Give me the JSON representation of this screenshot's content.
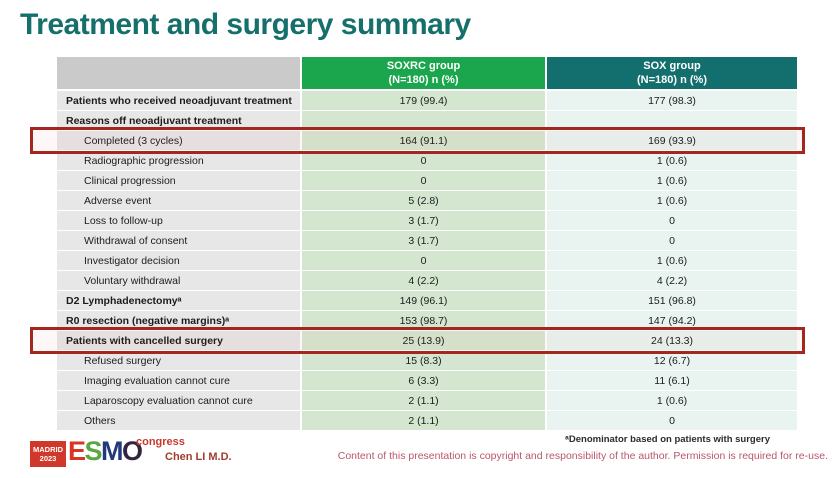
{
  "slide": {
    "title": "Treatment and surgery summary",
    "presenter": "Chen LI M.D.",
    "footnote": "ᵃDenominator based on patients with surgery",
    "copyright": "Content of this presentation is copyright and responsibility of the author.  Permission is required for re-use."
  },
  "logo": {
    "city": "MADRID",
    "year": "2023",
    "letters": [
      "E",
      "S",
      "M",
      "O"
    ],
    "congress": "congress"
  },
  "colors": {
    "title": "#156f6b",
    "label_header": "#cacaca",
    "soxrc_header": "#1ba64d",
    "sox_header": "#136f6e",
    "label_cell": "#e7e7e7",
    "soxrc_cell": "#d5e6d0",
    "sox_cell": "#e9f4f0",
    "highlight_border": "#a3271f",
    "copyright_text": "#b9576d"
  },
  "table": {
    "headers": [
      {
        "line1": "SOXRC group",
        "line2": "(N=180)  n (%)"
      },
      {
        "line1": "SOX group",
        "line2": "(N=180)  n (%)"
      }
    ],
    "rows": [
      {
        "label": "Patients who received neoadjuvant treatment",
        "soxrc": "179 (99.4)",
        "sox": "177 (98.3)",
        "bold": true,
        "indent": false,
        "highlighted": false
      },
      {
        "label": "Reasons off neoadjuvant treatment",
        "soxrc": "",
        "sox": "",
        "bold": true,
        "indent": false,
        "highlighted": false
      },
      {
        "label": "Completed (3 cycles)",
        "soxrc": "164 (91.1)",
        "sox": "169 (93.9)",
        "bold": false,
        "indent": true,
        "highlighted": true
      },
      {
        "label": "Radiographic progression",
        "soxrc": "0",
        "sox": "1 (0.6)",
        "bold": false,
        "indent": true,
        "highlighted": false
      },
      {
        "label": "Clinical progression",
        "soxrc": "0",
        "sox": "1 (0.6)",
        "bold": false,
        "indent": true,
        "highlighted": false
      },
      {
        "label": "Adverse event",
        "soxrc": "5 (2.8)",
        "sox": "1 (0.6)",
        "bold": false,
        "indent": true,
        "highlighted": false
      },
      {
        "label": "Loss to follow-up",
        "soxrc": "3 (1.7)",
        "sox": "0",
        "bold": false,
        "indent": true,
        "highlighted": false
      },
      {
        "label": "Withdrawal of consent",
        "soxrc": "3 (1.7)",
        "sox": "0",
        "bold": false,
        "indent": true,
        "highlighted": false
      },
      {
        "label": "Investigator decision",
        "soxrc": "0",
        "sox": "1 (0.6)",
        "bold": false,
        "indent": true,
        "highlighted": false
      },
      {
        "label": "Voluntary withdrawal",
        "soxrc": "4 (2.2)",
        "sox": "4 (2.2)",
        "bold": false,
        "indent": true,
        "highlighted": false
      },
      {
        "label": "D2 Lymphadenectomyᵃ",
        "soxrc": "149 (96.1)",
        "sox": "151 (96.8)",
        "bold": true,
        "indent": false,
        "highlighted": false
      },
      {
        "label": "R0 resection (negative margins)ᵃ",
        "soxrc": "153 (98.7)",
        "sox": "147 (94.2)",
        "bold": true,
        "indent": false,
        "highlighted": false
      },
      {
        "label": "Patients with cancelled surgery",
        "soxrc": "25 (13.9)",
        "sox": "24 (13.3)",
        "bold": true,
        "indent": false,
        "highlighted": true
      },
      {
        "label": "Refused surgery",
        "soxrc": "15 (8.3)",
        "sox": "12 (6.7)",
        "bold": false,
        "indent": true,
        "highlighted": false
      },
      {
        "label": "Imaging evaluation cannot cure",
        "soxrc": "6 (3.3)",
        "sox": "11 (6.1)",
        "bold": false,
        "indent": true,
        "highlighted": false
      },
      {
        "label": "Laparoscopy evaluation cannot cure",
        "soxrc": "2 (1.1)",
        "sox": "1 (0.6)",
        "bold": false,
        "indent": true,
        "highlighted": false
      },
      {
        "label": "Others",
        "soxrc": "2 (1.1)",
        "sox": "0",
        "bold": false,
        "indent": true,
        "highlighted": false
      }
    ]
  }
}
